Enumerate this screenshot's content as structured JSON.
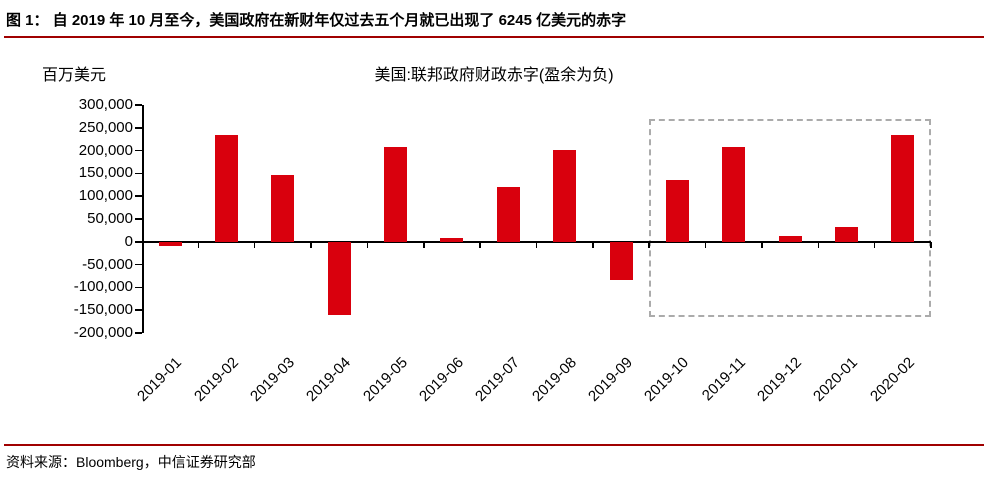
{
  "header": {
    "title": "图 1：  自 2019 年 10 月至今，美国政府在新财年仅过去五个月就已出现了 6245 亿美元的赤字"
  },
  "chart_data": {
    "type": "bar",
    "title": "美国:联邦政府财政赤字(盈余为负)",
    "unit_label": "百万美元",
    "categories": [
      "2019-01",
      "2019-02",
      "2019-03",
      "2019-04",
      "2019-05",
      "2019-06",
      "2019-07",
      "2019-08",
      "2019-09",
      "2019-10",
      "2019-11",
      "2019-12",
      "2020-01",
      "2020-02"
    ],
    "values": [
      -8700,
      234000,
      146900,
      -160300,
      207800,
      8500,
      119700,
      200300,
      -82800,
      134500,
      208800,
      13300,
      32600,
      235300
    ],
    "ylim": [
      -200000,
      300000
    ],
    "ytick_step": 50000,
    "grid": false,
    "legend": "none",
    "bar_color": "#D9000D",
    "highlight_range": {
      "from": "2019-10",
      "to": "2020-02"
    }
  },
  "footer": {
    "source": "资料来源：Bloomberg，中信证券研究部"
  },
  "colors": {
    "accent_rule": "#A00000",
    "bar": "#D9000D",
    "highlight_border": "#ABABAB",
    "axis": "#000000"
  }
}
